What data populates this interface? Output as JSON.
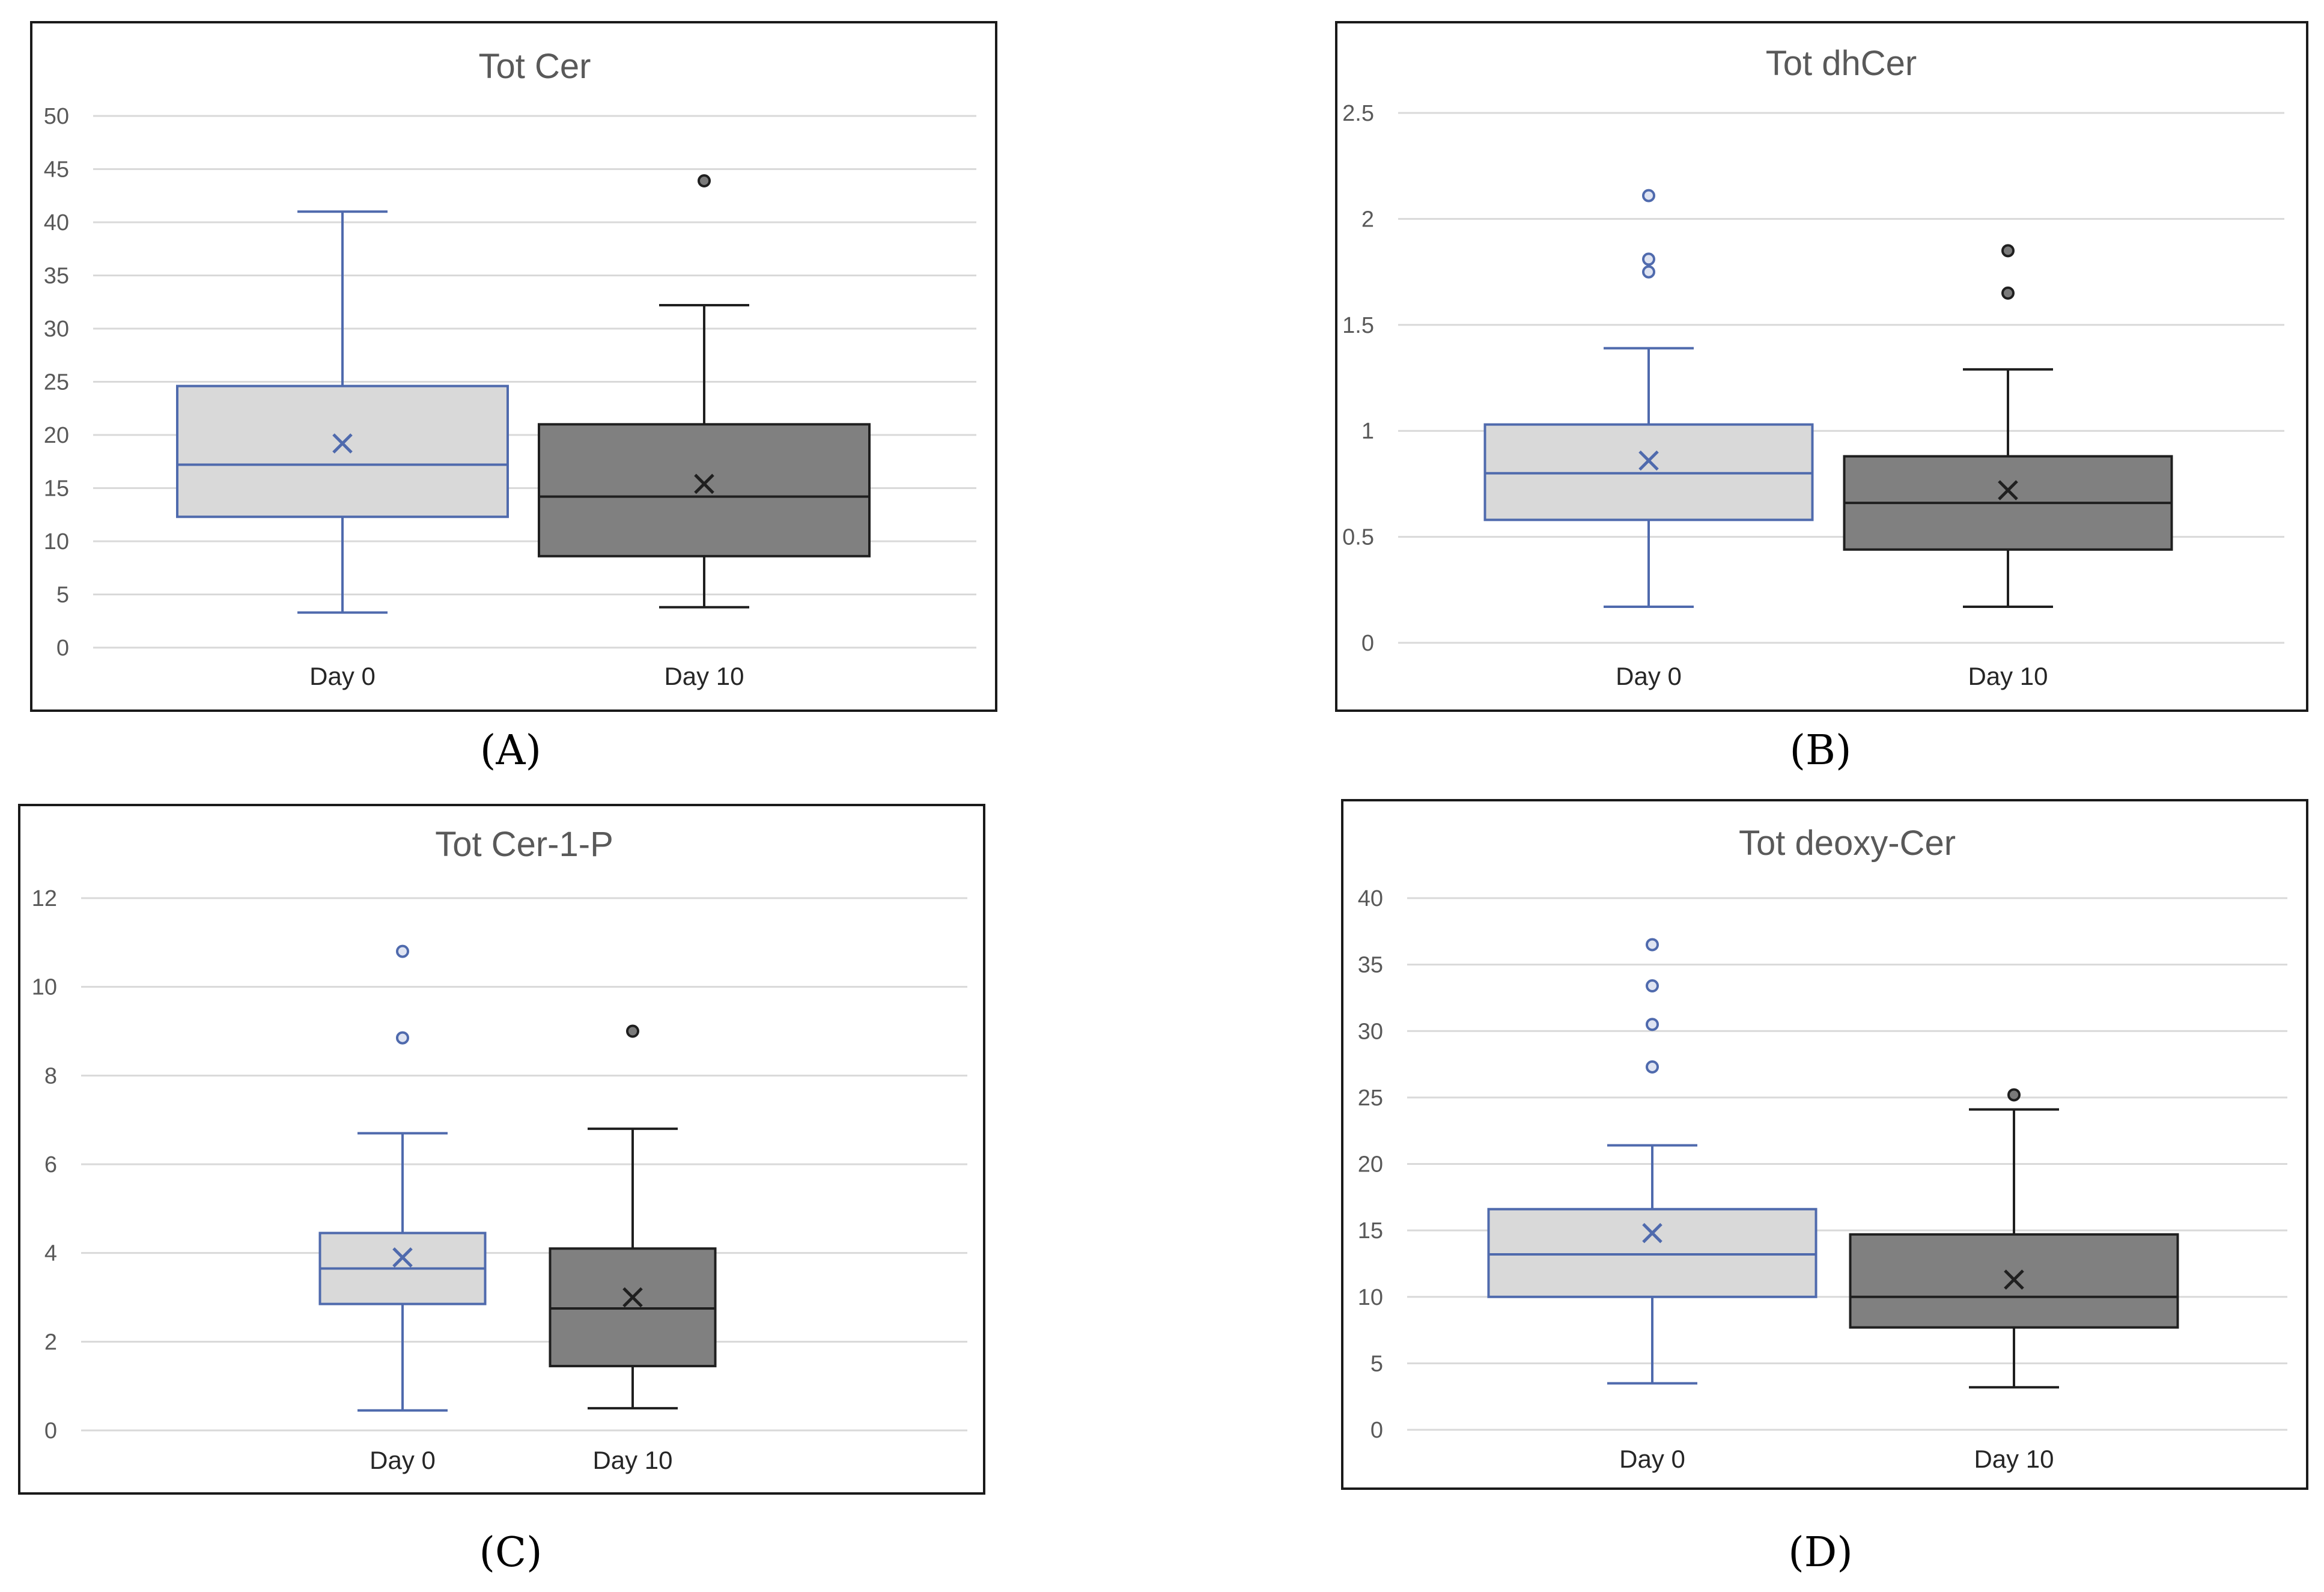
{
  "colors": {
    "day0_fill": "#d9d9d9",
    "day0_stroke": "#4f6aad",
    "day10_fill": "#808080",
    "day10_stroke": "#1f1f1f",
    "grid": "#d9d9d9",
    "axis_text": "#595959",
    "frame": "#1a1a1a"
  },
  "panel_labels": [
    "(A)",
    "(B)",
    "(C)",
    "(D)"
  ],
  "chart_data": [
    {
      "type": "box",
      "title": "Tot Cer",
      "categories": [
        "Day 0",
        "Day 10"
      ],
      "ylim": [
        0,
        50
      ],
      "yticks": [
        0,
        5,
        10,
        15,
        20,
        25,
        30,
        35,
        40,
        45,
        50
      ],
      "ytick_labels": [
        "0",
        "5",
        "10",
        "15",
        "20",
        "25",
        "30",
        "35",
        "40",
        "45",
        "50"
      ],
      "series": [
        {
          "name": "Day 0",
          "min": 3.3,
          "q1": 12.3,
          "median": 17.2,
          "q3": 24.6,
          "max": 41.0,
          "mean": 19.2,
          "outliers": []
        },
        {
          "name": "Day 10",
          "min": 3.8,
          "q1": 8.6,
          "median": 14.2,
          "q3": 21.0,
          "max": 32.2,
          "mean": 15.4,
          "outliers": [
            43.9
          ]
        }
      ]
    },
    {
      "type": "box",
      "title": "Tot dhCer",
      "categories": [
        "Day 0",
        "Day 10"
      ],
      "ylim": [
        0,
        2.5
      ],
      "yticks": [
        0,
        0.5,
        1,
        1.5,
        2,
        2.5
      ],
      "ytick_labels": [
        "0",
        "0.5",
        "1",
        "1.5",
        "2",
        "2.5"
      ],
      "series": [
        {
          "name": "Day 0",
          "min": 0.17,
          "q1": 0.58,
          "median": 0.8,
          "q3": 1.03,
          "max": 1.39,
          "mean": 0.86,
          "outliers": [
            1.75,
            1.81,
            2.11
          ]
        },
        {
          "name": "Day 10",
          "min": 0.17,
          "q1": 0.44,
          "median": 0.66,
          "q3": 0.88,
          "max": 1.29,
          "mean": 0.72,
          "outliers": [
            1.65,
            1.85
          ]
        }
      ]
    },
    {
      "type": "box",
      "title": "Tot Cer-1-P",
      "categories": [
        "Day 0",
        "Day 10"
      ],
      "ylim": [
        0,
        12
      ],
      "yticks": [
        0,
        2,
        4,
        6,
        8,
        10,
        12
      ],
      "ytick_labels": [
        "0",
        "2",
        "4",
        "6",
        "8",
        "10",
        "12"
      ],
      "series": [
        {
          "name": "Day 0",
          "min": 0.45,
          "q1": 2.85,
          "median": 3.65,
          "q3": 4.45,
          "max": 6.7,
          "mean": 3.9,
          "outliers": [
            8.85,
            10.8
          ]
        },
        {
          "name": "Day 10",
          "min": 0.5,
          "q1": 1.45,
          "median": 2.75,
          "q3": 4.1,
          "max": 6.8,
          "mean": 3.0,
          "outliers": [
            9.0
          ]
        }
      ]
    },
    {
      "type": "box",
      "title": "Tot deoxy-Cer",
      "categories": [
        "Day 0",
        "Day 10"
      ],
      "ylim": [
        0,
        40
      ],
      "yticks": [
        0,
        5,
        10,
        15,
        20,
        25,
        30,
        35,
        40
      ],
      "ytick_labels": [
        "0",
        "5",
        "10",
        "15",
        "20",
        "25",
        "30",
        "35",
        "40"
      ],
      "series": [
        {
          "name": "Day 0",
          "min": 3.5,
          "q1": 10.0,
          "median": 13.2,
          "q3": 16.6,
          "max": 21.4,
          "mean": 14.8,
          "outliers": [
            27.3,
            30.5,
            33.4,
            36.5
          ]
        },
        {
          "name": "Day 10",
          "min": 3.2,
          "q1": 7.7,
          "median": 10.0,
          "q3": 14.7,
          "max": 24.1,
          "mean": 11.3,
          "outliers": [
            25.2
          ]
        }
      ]
    }
  ]
}
